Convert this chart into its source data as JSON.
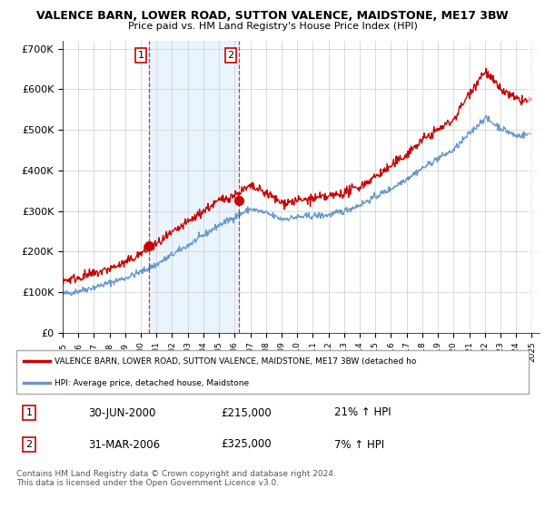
{
  "title": "VALENCE BARN, LOWER ROAD, SUTTON VALENCE, MAIDSTONE, ME17 3BW",
  "subtitle": "Price paid vs. HM Land Registry's House Price Index (HPI)",
  "ylim": [
    0,
    720000
  ],
  "yticks": [
    0,
    100000,
    200000,
    300000,
    400000,
    500000,
    600000,
    700000
  ],
  "ytick_labels": [
    "£0",
    "£100K",
    "£200K",
    "£300K",
    "£400K",
    "£500K",
    "£600K",
    "£700K"
  ],
  "legend_label_red": "VALENCE BARN, LOWER ROAD, SUTTON VALENCE, MAIDSTONE, ME17 3BW (detached ho",
  "legend_label_blue": "HPI: Average price, detached house, Maidstone",
  "transaction1_date": "30-JUN-2000",
  "transaction1_price": "£215,000",
  "transaction1_hpi": "21% ↑ HPI",
  "transaction2_date": "31-MAR-2006",
  "transaction2_price": "£325,000",
  "transaction2_hpi": "7% ↑ HPI",
  "footer": "Contains HM Land Registry data © Crown copyright and database right 2024.\nThis data is licensed under the Open Government Licence v3.0.",
  "red_color": "#cc0000",
  "blue_color": "#6699cc",
  "blue_fill_color": "#ddeeff",
  "vline_color": "#cc0000",
  "grid_color": "#cccccc",
  "background_color": "#ffffff",
  "transaction1_x": 2000.5,
  "transaction2_x": 2006.25,
  "hpi_control_years": [
    1995,
    1996,
    1997,
    1998,
    1999,
    2000,
    2001,
    2002,
    2003,
    2004,
    2005,
    2006,
    2007,
    2008,
    2009,
    2010,
    2011,
    2012,
    2013,
    2014,
    2015,
    2016,
    2017,
    2018,
    2019,
    2020,
    2021,
    2022,
    2023,
    2024,
    2025
  ],
  "hpi_control_vals": [
    95000,
    103000,
    112000,
    123000,
    135000,
    150000,
    168000,
    192000,
    215000,
    240000,
    265000,
    285000,
    305000,
    295000,
    280000,
    285000,
    288000,
    290000,
    300000,
    315000,
    335000,
    355000,
    380000,
    405000,
    430000,
    450000,
    490000,
    530000,
    505000,
    485000,
    490000
  ],
  "red_control_years": [
    1995,
    1996,
    1997,
    1998,
    1999,
    2000,
    2001,
    2002,
    2003,
    2004,
    2005,
    2006,
    2007,
    2008,
    2009,
    2010,
    2011,
    2012,
    2013,
    2014,
    2015,
    2016,
    2017,
    2018,
    2019,
    2020,
    2021,
    2022,
    2023,
    2024,
    2025
  ],
  "red_control_vals": [
    128000,
    136000,
    145000,
    158000,
    172000,
    195000,
    218000,
    245000,
    272000,
    300000,
    325000,
    340000,
    360000,
    345000,
    320000,
    325000,
    330000,
    335000,
    345000,
    360000,
    385000,
    410000,
    440000,
    475000,
    500000,
    525000,
    590000,
    645000,
    600000,
    575000,
    570000
  ],
  "noise_seed": 42,
  "hpi_noise_std": 4000,
  "red_noise_std": 6000,
  "npoints": 721
}
